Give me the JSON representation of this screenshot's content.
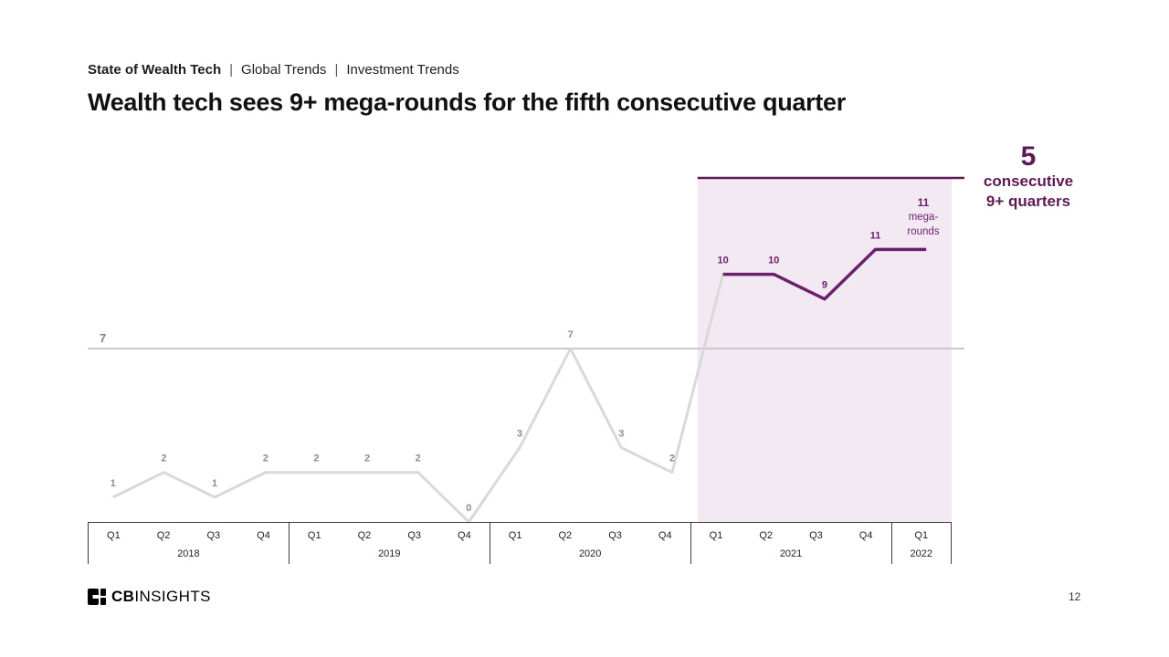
{
  "colors": {
    "accent": "#6c1f6d",
    "accent_dark": "#5d1a56",
    "highlight_bg": "#f2e9f2",
    "gray_line": "#d9d9d9",
    "gray_label": "#8d8d8d",
    "ref_line": "#c9c9c9",
    "ref_label": "#808080"
  },
  "breadcrumb": {
    "part1": "State of Wealth Tech",
    "sep": "|",
    "part2": "Global Trends",
    "part3": "Investment Trends"
  },
  "title": "Wealth tech sees 9+ mega-rounds for the fifth consecutive quarter",
  "chart_data": {
    "type": "line",
    "title": "Wealth tech quarterly mega-rounds",
    "x_groups": [
      {
        "year": "2018",
        "quarters": [
          "Q1",
          "Q2",
          "Q3",
          "Q4"
        ]
      },
      {
        "year": "2019",
        "quarters": [
          "Q1",
          "Q2",
          "Q3",
          "Q4"
        ]
      },
      {
        "year": "2020",
        "quarters": [
          "Q1",
          "Q2",
          "Q3",
          "Q4"
        ]
      },
      {
        "year": "2021",
        "quarters": [
          "Q1",
          "Q2",
          "Q3",
          "Q4"
        ]
      },
      {
        "year": "2022",
        "quarters": [
          "Q1"
        ]
      }
    ],
    "values": [
      1,
      2,
      1,
      2,
      2,
      2,
      2,
      0,
      3,
      7,
      3,
      2,
      10,
      10,
      9,
      11,
      11
    ],
    "highlight_start_index": 12,
    "reference_line": {
      "value": 7,
      "label": "7"
    },
    "last_point_label": [
      "11",
      "mega-",
      "rounds"
    ],
    "ylim": [
      0,
      14
    ],
    "legend": "none",
    "grid": "off"
  },
  "annotation": {
    "number": "5",
    "line1": "consecutive",
    "line2": "9+ quarters"
  },
  "footer": {
    "logo_bold": "CB",
    "logo_rest": "INSIGHTS",
    "page_number": "12"
  }
}
